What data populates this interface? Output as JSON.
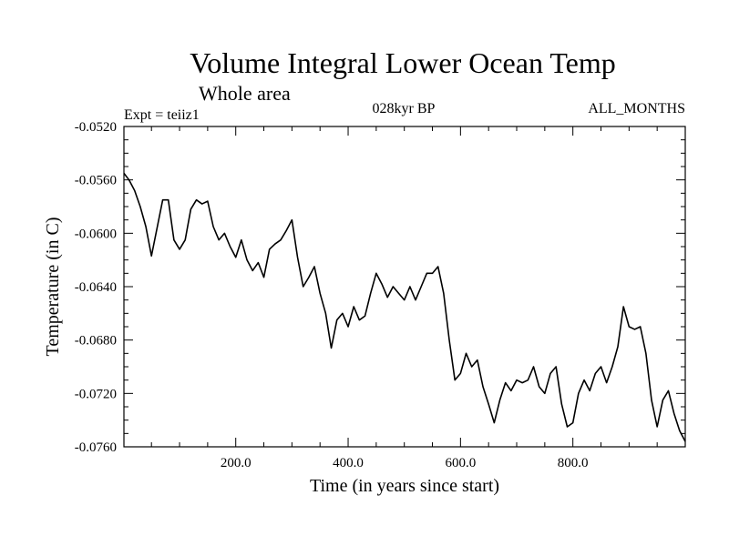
{
  "chart_data": {
    "type": "line",
    "title": "Volume Integral Lower Ocean Temp",
    "subtitle": "Whole area",
    "experiment_label": "Expt = teiiz1",
    "period_label": "028kyr BP",
    "months_label": "ALL_MONTHS",
    "xlabel": "Time (in years since start)",
    "ylabel": "Temperature (in C)",
    "xlim": [
      1,
      1000
    ],
    "ylim": [
      -0.076,
      -0.052
    ],
    "xticks": [
      200,
      400,
      600,
      800
    ],
    "xtick_labels": [
      "200.0",
      "400.0",
      "600.0",
      "800.0"
    ],
    "yticks": [
      -0.052,
      -0.056,
      -0.06,
      -0.064,
      -0.068,
      -0.072,
      -0.076
    ],
    "ytick_labels": [
      "-0.0520",
      "-0.0560",
      "-0.0600",
      "-0.0640",
      "-0.0680",
      "-0.0720",
      "-0.0760"
    ],
    "grid": false,
    "line_color": "#000000",
    "series": [
      {
        "x": [
          1,
          10,
          20,
          30,
          40,
          50,
          60,
          70,
          80,
          90,
          100,
          110,
          120,
          130,
          140,
          150,
          160,
          170,
          180,
          190,
          200,
          210,
          220,
          230,
          240,
          250,
          260,
          270,
          280,
          290,
          300,
          310,
          320,
          330,
          340,
          350,
          360,
          370,
          380,
          390,
          400,
          410,
          420,
          430,
          440,
          450,
          460,
          470,
          480,
          490,
          500,
          510,
          520,
          530,
          540,
          550,
          560,
          570,
          580,
          590,
          600,
          610,
          620,
          630,
          640,
          650,
          660,
          670,
          680,
          690,
          700,
          710,
          720,
          730,
          740,
          750,
          760,
          770,
          780,
          790,
          800,
          810,
          820,
          830,
          840,
          850,
          860,
          870,
          880,
          890,
          900,
          910,
          920,
          930,
          940,
          950,
          960,
          970,
          980,
          990,
          1000
        ],
        "y": [
          -0.0555,
          -0.056,
          -0.0568,
          -0.058,
          -0.0595,
          -0.0617,
          -0.0596,
          -0.0575,
          -0.0575,
          -0.0605,
          -0.0612,
          -0.0605,
          -0.0582,
          -0.0575,
          -0.0578,
          -0.0576,
          -0.0595,
          -0.0605,
          -0.06,
          -0.061,
          -0.0618,
          -0.0605,
          -0.062,
          -0.0628,
          -0.0622,
          -0.0633,
          -0.0612,
          -0.0608,
          -0.0605,
          -0.0598,
          -0.059,
          -0.0618,
          -0.064,
          -0.0633,
          -0.0625,
          -0.0645,
          -0.066,
          -0.0686,
          -0.0665,
          -0.066,
          -0.067,
          -0.0655,
          -0.0665,
          -0.0662,
          -0.0645,
          -0.063,
          -0.0638,
          -0.0648,
          -0.064,
          -0.0645,
          -0.065,
          -0.064,
          -0.065,
          -0.064,
          -0.063,
          -0.063,
          -0.0625,
          -0.0645,
          -0.068,
          -0.071,
          -0.0705,
          -0.069,
          -0.07,
          -0.0695,
          -0.0715,
          -0.0728,
          -0.0742,
          -0.0725,
          -0.0712,
          -0.0718,
          -0.071,
          -0.0712,
          -0.071,
          -0.07,
          -0.0715,
          -0.072,
          -0.0705,
          -0.07,
          -0.0728,
          -0.0745,
          -0.0742,
          -0.072,
          -0.071,
          -0.0718,
          -0.0705,
          -0.07,
          -0.0712,
          -0.07,
          -0.0685,
          -0.0655,
          -0.067,
          -0.0672,
          -0.067,
          -0.069,
          -0.0725,
          -0.0745,
          -0.0725,
          -0.0718,
          -0.0735,
          -0.0748,
          -0.0756
        ]
      }
    ]
  }
}
